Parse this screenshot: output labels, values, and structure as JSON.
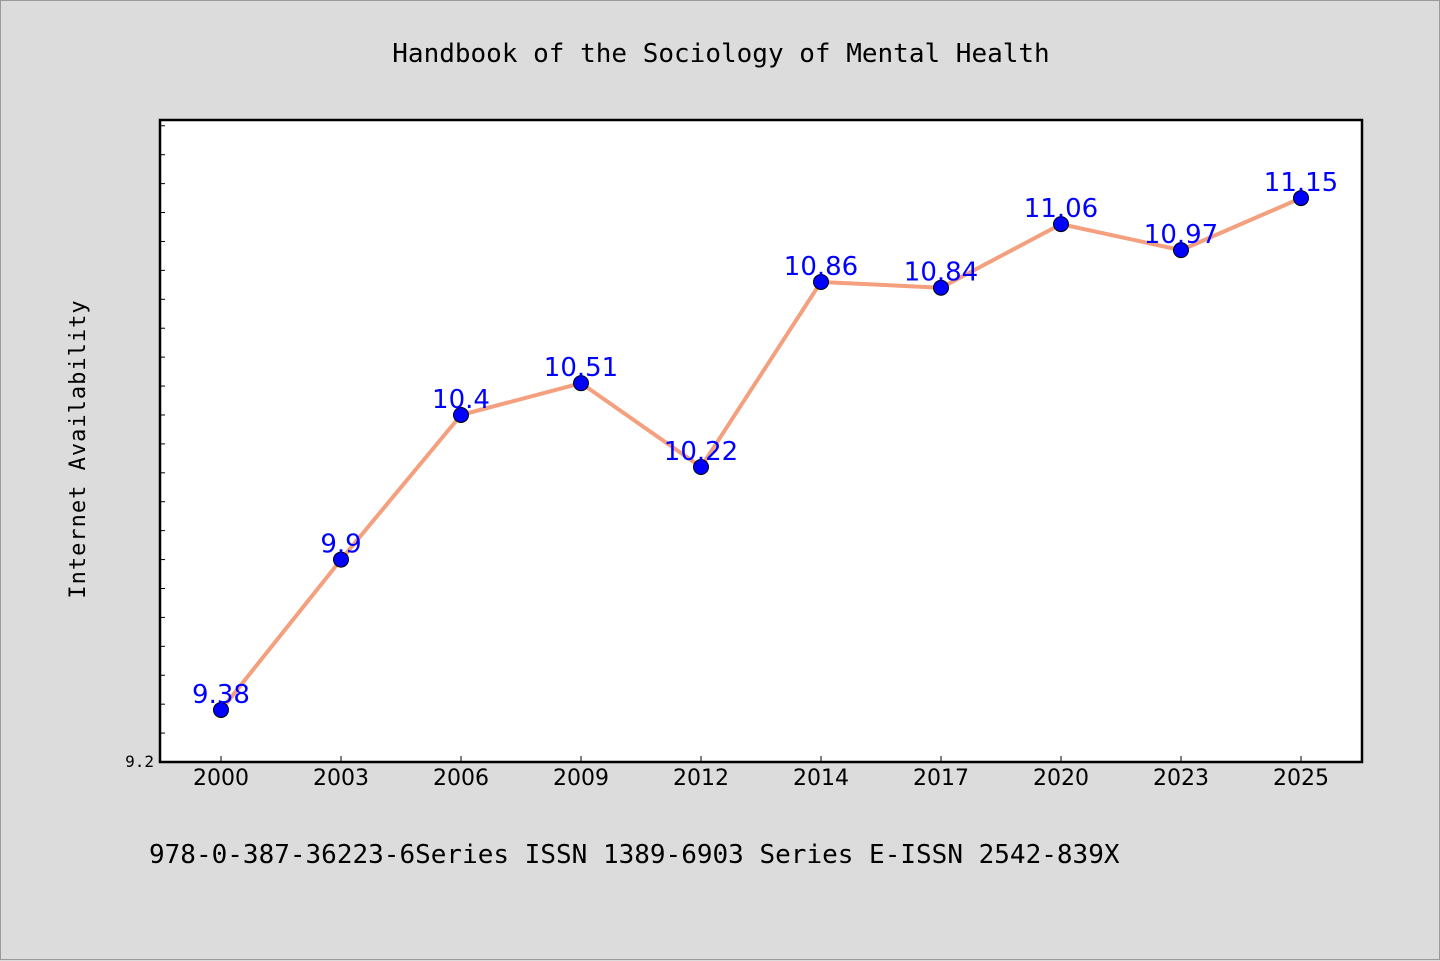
{
  "chart_data": {
    "type": "line",
    "title": "Handbook of the Sociology of Mental Health",
    "xlabel": "",
    "ylabel": "Internet Availability",
    "categories": [
      "2000",
      "2003",
      "2006",
      "2009",
      "2012",
      "2014",
      "2017",
      "2020",
      "2023",
      "2025"
    ],
    "series": [
      {
        "values": [
          9.38,
          9.9,
          10.4,
          10.51,
          10.22,
          10.86,
          10.84,
          11.06,
          10.97,
          11.15
        ],
        "labels": [
          "9.38",
          "9.9",
          "10.4",
          "10.51",
          "10.22",
          "10.86",
          "10.84",
          "11.06",
          "10.97",
          "11.15"
        ],
        "line_color": "#f4a07e",
        "marker_color": "#0000ff"
      }
    ],
    "ylim": [
      9.2,
      11.42
    ],
    "ytick_labels": [
      "9.2"
    ],
    "grid": false,
    "legend": "none",
    "label_color": "#0000ff"
  },
  "footer": {
    "text": "978-0-387-36223-6Series ISSN 1389-6903 Series E-ISSN 2542-839X"
  }
}
